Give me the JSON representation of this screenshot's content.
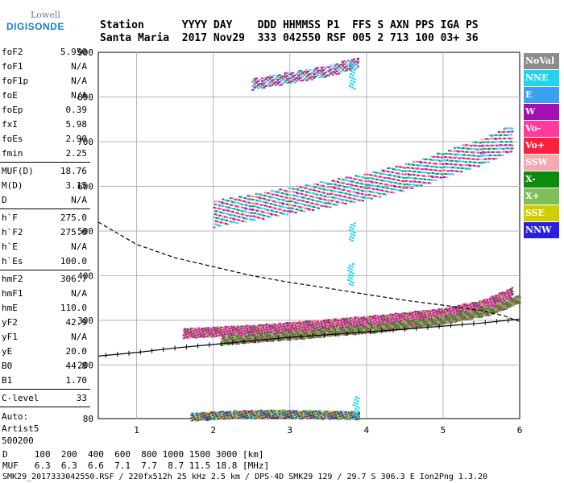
{
  "logo": {
    "line1": "Lowell",
    "line2": "DIGISONDE"
  },
  "header": {
    "line1": "Station      YYYY DAY    DDD HHMMSS P1  FFS S AXN PPS IGA PS",
    "line2": "Santa Maria  2017 Nov29  333 042550 RSF 005 2 713 100 03+ 36"
  },
  "params": [
    {
      "name": "foF2",
      "value": "5.950"
    },
    {
      "name": "foF1",
      "value": "N/A"
    },
    {
      "name": "foF1p",
      "value": "N/A"
    },
    {
      "name": "foE",
      "value": "N/A"
    },
    {
      "name": "foEp",
      "value": "0.39"
    },
    {
      "name": "fxI",
      "value": "5.98"
    },
    {
      "name": "foEs",
      "value": "2.90"
    },
    {
      "name": "fmin",
      "value": "2.25"
    },
    {
      "name": "MUF(D)",
      "value": "18.76"
    },
    {
      "name": "M(D)",
      "value": "3.15"
    },
    {
      "name": "D",
      "value": "N/A"
    },
    {
      "name": "h`F",
      "value": "275.0"
    },
    {
      "name": "h`F2",
      "value": "275.0"
    },
    {
      "name": "h`E",
      "value": "N/A"
    },
    {
      "name": "h`Es",
      "value": "100.0"
    },
    {
      "name": "hmF2",
      "value": "306.7"
    },
    {
      "name": "hmF1",
      "value": "N/A"
    },
    {
      "name": "hmE",
      "value": "110.0"
    },
    {
      "name": "yF2",
      "value": "42.9"
    },
    {
      "name": "yF1",
      "value": "N/A"
    },
    {
      "name": "yE",
      "value": "20.0"
    },
    {
      "name": "B0",
      "value": "44.8"
    },
    {
      "name": "B1",
      "value": "1.70"
    },
    {
      "name": "C-level",
      "value": "33"
    }
  ],
  "auto": {
    "line1": "Auto:",
    "line2": "Artist5",
    "line3": "500200"
  },
  "legend": [
    {
      "label": "NoVal",
      "color": "#8c8c8c"
    },
    {
      "label": "NNE",
      "color": "#22d3ee"
    },
    {
      "label": "E",
      "color": "#3aa0f0"
    },
    {
      "label": "W",
      "color": "#a40fb4"
    },
    {
      "label": "Vo-",
      "color": "#ff3c9e"
    },
    {
      "label": "Vo+",
      "color": "#ff1f3c"
    },
    {
      "label": "SSW",
      "color": "#f4a8b0"
    },
    {
      "label": "X-",
      "color": "#0e8a0e"
    },
    {
      "label": "X+",
      "color": "#7fbf5a"
    },
    {
      "label": "SSE",
      "color": "#cfcf00"
    },
    {
      "label": "NNW",
      "color": "#2b1ee0"
    }
  ],
  "mufTable": {
    "dLabel": "D",
    "dValues": [
      "100",
      "200",
      "400",
      "600",
      "800",
      "1000",
      "1500",
      "3000"
    ],
    "dUnit": "[km]",
    "mLabel": "MUF",
    "mValues": [
      "6.3",
      "6.3",
      "6.6",
      "7.1",
      "7.7",
      "8.7",
      "11.5",
      "18.8"
    ],
    "mUnit": "[MHz]"
  },
  "footer": "SMK29_2017333042550.RSF / 220fx512h 25 kHz 2.5 km / DPS-4D SMK29 129 / 29.7 S 306.3 E Ion2Png 1.3.20",
  "chart_data": {
    "type": "scatter",
    "xlim": [
      0.5,
      6.0
    ],
    "ylim": [
      80,
      900
    ],
    "xticks": [
      1,
      2,
      3,
      4,
      5,
      6
    ],
    "yticks": [
      80,
      200,
      300,
      400,
      500,
      600,
      700,
      800,
      900
    ],
    "grid": true,
    "o_trace": [
      [
        1.6,
        272
      ],
      [
        2.0,
        276
      ],
      [
        2.5,
        280
      ],
      [
        3.0,
        286
      ],
      [
        3.5,
        293
      ],
      [
        4.0,
        300
      ],
      [
        4.5,
        308
      ],
      [
        5.0,
        318
      ],
      [
        5.5,
        335
      ],
      [
        5.9,
        365
      ]
    ],
    "x_trace": [
      [
        2.1,
        255
      ],
      [
        2.6,
        262
      ],
      [
        3.1,
        268
      ],
      [
        3.6,
        276
      ],
      [
        4.1,
        283
      ],
      [
        4.6,
        292
      ],
      [
        5.1,
        305
      ],
      [
        5.6,
        322
      ],
      [
        6.0,
        350
      ]
    ],
    "o_multihop": [
      [
        2.0,
        540
      ],
      [
        2.5,
        555
      ],
      [
        3.0,
        570
      ],
      [
        3.5,
        585
      ],
      [
        4.0,
        602
      ],
      [
        4.5,
        622
      ],
      [
        5.0,
        650
      ],
      [
        5.5,
        680
      ],
      [
        5.9,
        710
      ]
    ],
    "o_third_hop": [
      [
        2.5,
        830
      ],
      [
        3.0,
        845
      ],
      [
        3.5,
        860
      ],
      [
        3.9,
        880
      ]
    ],
    "es_trace": [
      [
        1.7,
        85
      ],
      [
        2.2,
        90
      ],
      [
        2.8,
        92
      ],
      [
        3.4,
        90
      ],
      [
        3.9,
        88
      ]
    ],
    "profile_dashed": [
      [
        0.5,
        520
      ],
      [
        1.0,
        470
      ],
      [
        1.5,
        440
      ],
      [
        2.0,
        420
      ],
      [
        2.5,
        400
      ],
      [
        3.0,
        385
      ],
      [
        3.5,
        372
      ],
      [
        4.0,
        358
      ],
      [
        4.5,
        345
      ],
      [
        5.0,
        334
      ],
      [
        5.5,
        322
      ],
      [
        5.8,
        310
      ],
      [
        5.95,
        300
      ],
      [
        6.0,
        298
      ]
    ],
    "profile_solid": [
      [
        0.5,
        220
      ],
      [
        1.0,
        228
      ],
      [
        1.5,
        238
      ],
      [
        2.0,
        246
      ],
      [
        2.5,
        254
      ],
      [
        3.0,
        262
      ],
      [
        3.5,
        268
      ],
      [
        4.0,
        274
      ],
      [
        4.5,
        280
      ],
      [
        5.0,
        287
      ],
      [
        5.5,
        294
      ],
      [
        5.95,
        302
      ],
      [
        6.0,
        303
      ]
    ]
  }
}
